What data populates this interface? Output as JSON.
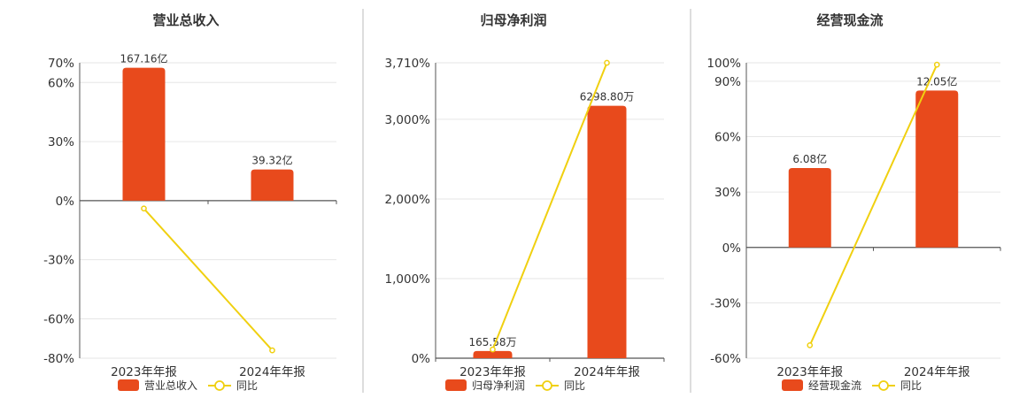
{
  "colors": {
    "bar": "#E84A1C",
    "line": "#F0D010",
    "grid": "#e6e6e6",
    "axis": "#555555",
    "divider": "#bbbbbb"
  },
  "chart_data": [
    {
      "type": "bar",
      "title": "营业总收入",
      "categories": [
        "2023年年报",
        "2024年年报"
      ],
      "y_unit": "%",
      "ylim": [
        -80,
        70
      ],
      "yticks": [
        70,
        60,
        30,
        0,
        -30,
        -60,
        -80
      ],
      "series": [
        {
          "name": "营业总收入",
          "kind": "bar",
          "values": [
            67.5,
            15.8
          ],
          "labels": [
            "167.16亿",
            "39.32亿"
          ]
        },
        {
          "name": "同比",
          "kind": "line",
          "values": [
            -4,
            -76
          ]
        }
      ]
    },
    {
      "type": "bar",
      "title": "归母净利润",
      "categories": [
        "2023年年报",
        "2024年年报"
      ],
      "y_unit": "%",
      "ylim": [
        0,
        3710
      ],
      "yticks": [
        3710,
        3000,
        2000,
        1000,
        0
      ],
      "series": [
        {
          "name": "归母净利润",
          "kind": "bar",
          "values": [
            90,
            3170
          ],
          "labels": [
            "165.58万",
            "6298.80万"
          ]
        },
        {
          "name": "同比",
          "kind": "line",
          "values": [
            110,
            3710
          ]
        }
      ]
    },
    {
      "type": "bar",
      "title": "经营现金流",
      "categories": [
        "2023年年报",
        "2024年年报"
      ],
      "y_unit": "%",
      "ylim": [
        -60,
        100
      ],
      "yticks": [
        100,
        90,
        60,
        30,
        0,
        -30,
        -60
      ],
      "series": [
        {
          "name": "经营现金流",
          "kind": "bar",
          "values": [
            43,
            85
          ],
          "labels": [
            "6.08亿",
            "12.05亿"
          ]
        },
        {
          "name": "同比",
          "kind": "line",
          "values": [
            -53,
            99
          ]
        }
      ]
    }
  ]
}
